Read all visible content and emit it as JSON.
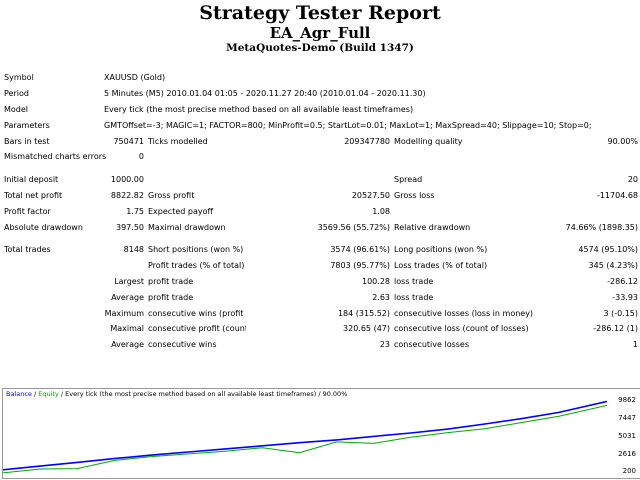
{
  "header": {
    "title": "Strategy Tester Report",
    "expert": "EA_Agr_Full",
    "server": "MetaQuotes-Demo (Build 1347)"
  },
  "info": {
    "symbol_label": "Symbol",
    "symbol": "XAUUSD (Gold)",
    "period_label": "Period",
    "period": "5 Minutes (M5) 2010.01.04 01:05 - 2020.11.27 20:40 (2010.01.04 - 2020.11.30)",
    "model_label": "Model",
    "model": "Every tick (the most precise method based on all available least timeframes)",
    "params_label": "Parameters",
    "params": "GMTOffset=-3; MAGIC=1; FACTOR=800; MinProfit=0.5; StartLot=0.01; MaxLot=1; MaxSpread=40; Slippage=10; Stop=0;",
    "bars_label": "Bars in test",
    "bars": "750471",
    "ticks_label": "Ticks modelled",
    "ticks": "209347780",
    "quality_label": "Modelling quality",
    "quality": "90.00%",
    "mismatch_label": "Mismatched charts errors",
    "mismatch": "0"
  },
  "stats": {
    "deposit_label": "Initial deposit",
    "deposit": "1000.00",
    "spread_label": "Spread",
    "spread": "20",
    "net_label": "Total net profit",
    "net": "8822.82",
    "gross_profit_label": "Gross profit",
    "gross_profit": "20527.50",
    "gross_loss_label": "Gross loss",
    "gross_loss": "-11704.68",
    "pf_label": "Profit factor",
    "pf": "1.75",
    "ep_label": "Expected payoff",
    "ep": "1.08",
    "abs_dd_label": "Absolute drawdown",
    "abs_dd": "397.50",
    "max_dd_label": "Maximal drawdown",
    "max_dd": "3569.56 (55.72%)",
    "rel_dd_label": "Relative drawdown",
    "rel_dd": "74.66% (1898.35)",
    "trades_label": "Total trades",
    "trades": "8148",
    "short_label": "Short positions (won %)",
    "short": "3574 (96.61%)",
    "long_label": "Long positions (won %)",
    "long": "4574 (95.10%)",
    "pt_label": "Profit trades (% of total)",
    "pt": "7803 (95.77%)",
    "lt_label": "Loss trades (% of total)",
    "lt": "345 (4.23%)",
    "largest": "Largest",
    "largest_pt_label": "profit trade",
    "largest_pt": "100.28",
    "largest_lt_label": "loss trade",
    "largest_lt": "-286.12",
    "average": "Average",
    "avg_pt_label": "profit trade",
    "avg_pt": "2.63",
    "avg_lt_label": "loss trade",
    "avg_lt": "-33.93",
    "maximum": "Maximum",
    "max_cw_label": "consecutive wins (profit in money)",
    "max_cw": "184 (315.52)",
    "max_cl_label": "consecutive losses (loss in money)",
    "max_cl": "3 (-0.15)",
    "maximal": "Maximal",
    "mx_cp_label": "consecutive profit (count of wins)",
    "mx_cp": "320.65 (47)",
    "mx_cl_label": "consecutive loss (count of losses)",
    "mx_cl": "-286.12 (1)",
    "average2": "Average",
    "avg_cw_label": "consecutive wins",
    "avg_cw": "23",
    "avg_cl_label": "consecutive losses",
    "avg_cl": "1"
  },
  "chart_data": {
    "type": "line",
    "legend_balance": "Balance",
    "legend_sep": " / ",
    "legend_equity": "Equity",
    "legend_desc": " / Every tick (the most precise method based on all available least timeframes) / 90.00%",
    "y_ticks": [
      "9862",
      "7447",
      "5031",
      "2616",
      "200"
    ],
    "ylim": [
      200,
      10000
    ],
    "x": [
      0,
      500,
      1000,
      1500,
      2000,
      2500,
      3000,
      3500,
      4000,
      4500,
      5000,
      5500,
      6000,
      6500,
      7000,
      7500,
      8148
    ],
    "series": [
      {
        "name": "Balance",
        "color": "#0000ff",
        "values": [
          1000,
          1480,
          1950,
          2450,
          2900,
          3300,
          3700,
          4100,
          4500,
          4850,
          5300,
          5750,
          6250,
          6900,
          7600,
          8400,
          9822
        ]
      },
      {
        "name": "Equity",
        "color": "#00aa00",
        "values": [
          600,
          1100,
          1150,
          2200,
          2700,
          3050,
          3400,
          3850,
          3200,
          4600,
          4400,
          5200,
          5800,
          6300,
          7100,
          7900,
          9300
        ]
      }
    ],
    "colors": {
      "balance": "#0000ff",
      "equity": "#00aa00"
    }
  }
}
